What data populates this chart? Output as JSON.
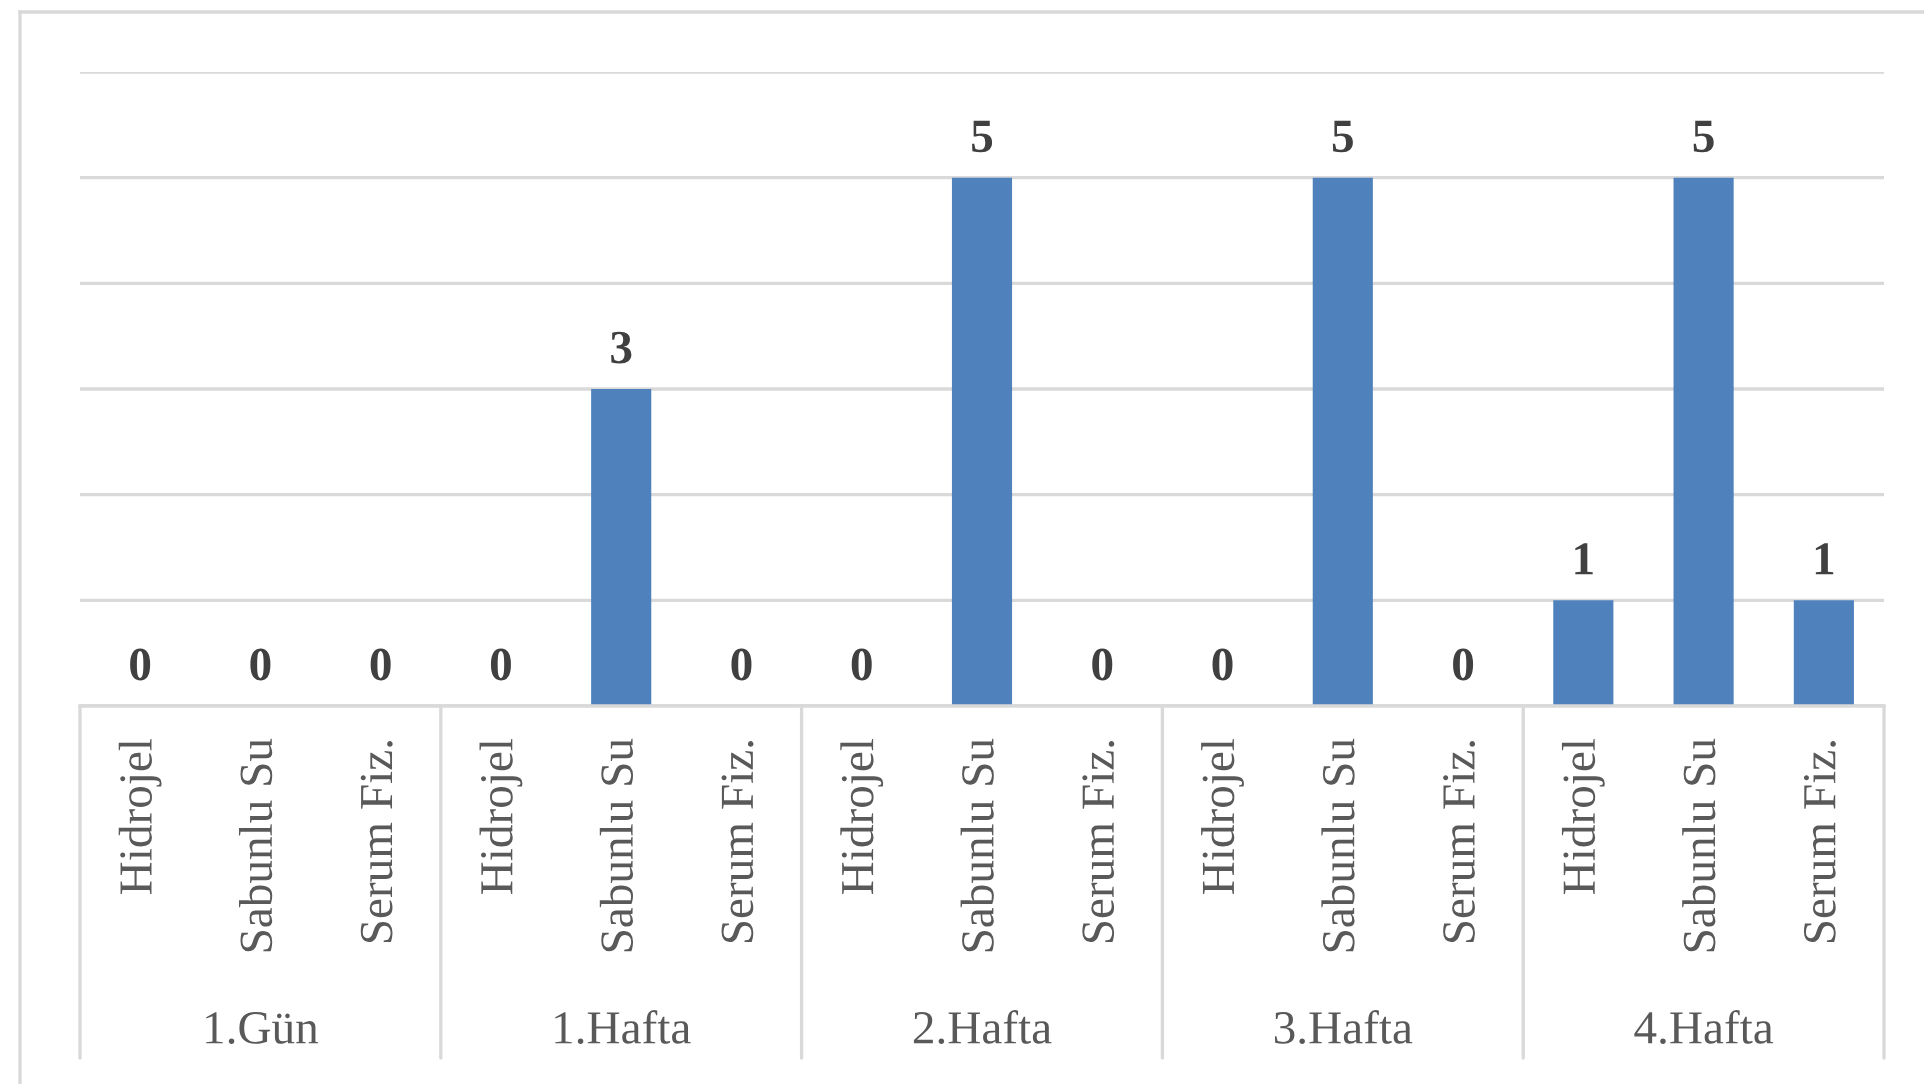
{
  "chart_data": {
    "type": "bar",
    "categories": [
      "Hidrojel",
      "Sabunlu Su",
      "Serum Fiz.",
      "Hidrojel",
      "Sabunlu Su",
      "Serum Fiz.",
      "Hidrojel",
      "Sabunlu Su",
      "Serum Fiz.",
      "Hidrojel",
      "Sabunlu Su",
      "Serum Fiz.",
      "Hidrojel",
      "Sabunlu Su",
      "Serum Fiz."
    ],
    "values": [
      0,
      0,
      0,
      0,
      3,
      0,
      0,
      5,
      0,
      0,
      5,
      0,
      1,
      5,
      1
    ],
    "color": "#4f81bd",
    "ylim": [
      0,
      6
    ],
    "yticks": [
      {
        "value": 0,
        "label": null
      },
      {
        "value": 1,
        "label": null
      },
      {
        "value": 2,
        "label": null
      },
      {
        "value": 3,
        "label": null
      },
      {
        "value": 4,
        "label": null
      },
      {
        "value": 5,
        "label": null
      },
      {
        "value": 6,
        "label": null
      }
    ],
    "grid": "y",
    "tick_labels": "x",
    "data_labels": true,
    "annotations": [
      "1.Gün",
      "1.Hafta",
      "2.Hafta",
      "3.Hafta",
      "4.Hafta"
    ]
  }
}
